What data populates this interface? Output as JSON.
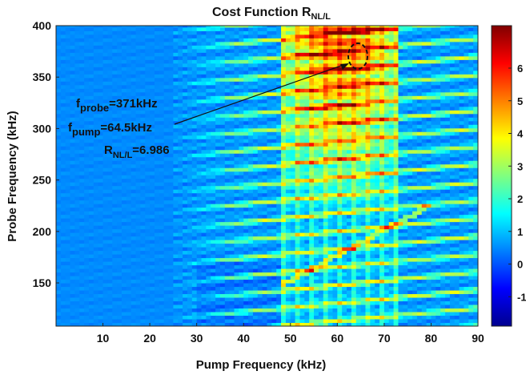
{
  "chart_data": {
    "type": "heatmap",
    "title_main": "Cost Function R",
    "title_sub": "NL/L",
    "xlabel": "Pump Frequency (kHz)",
    "ylabel": "Probe Frequency (kHz)",
    "xlim": [
      0,
      90
    ],
    "ylim": [
      108,
      400
    ],
    "x_ticks": [
      10,
      20,
      30,
      40,
      50,
      60,
      70,
      80,
      90
    ],
    "y_ticks": [
      150,
      200,
      250,
      300,
      350,
      400
    ],
    "colorbar": {
      "range": [
        -1.9,
        7.3
      ],
      "ticks": [
        -1,
        0,
        1,
        2,
        3,
        4,
        5,
        6
      ],
      "colors": [
        "#00008f",
        "#0000ff",
        "#0080ff",
        "#00ffff",
        "#80ff80",
        "#ffff00",
        "#ff8000",
        "#ff0000",
        "#800000"
      ]
    },
    "annotation": {
      "probe_label": "f",
      "probe_sub": "probe",
      "probe_value": "=371kHz",
      "pump_label": "f",
      "pump_sub": "pump",
      "pump_value": "=64.5kHz",
      "r_label": "R",
      "r_sub": "NL/L",
      "r_value": "=6.986",
      "marker": {
        "x": 64.5,
        "y": 371
      }
    }
  }
}
